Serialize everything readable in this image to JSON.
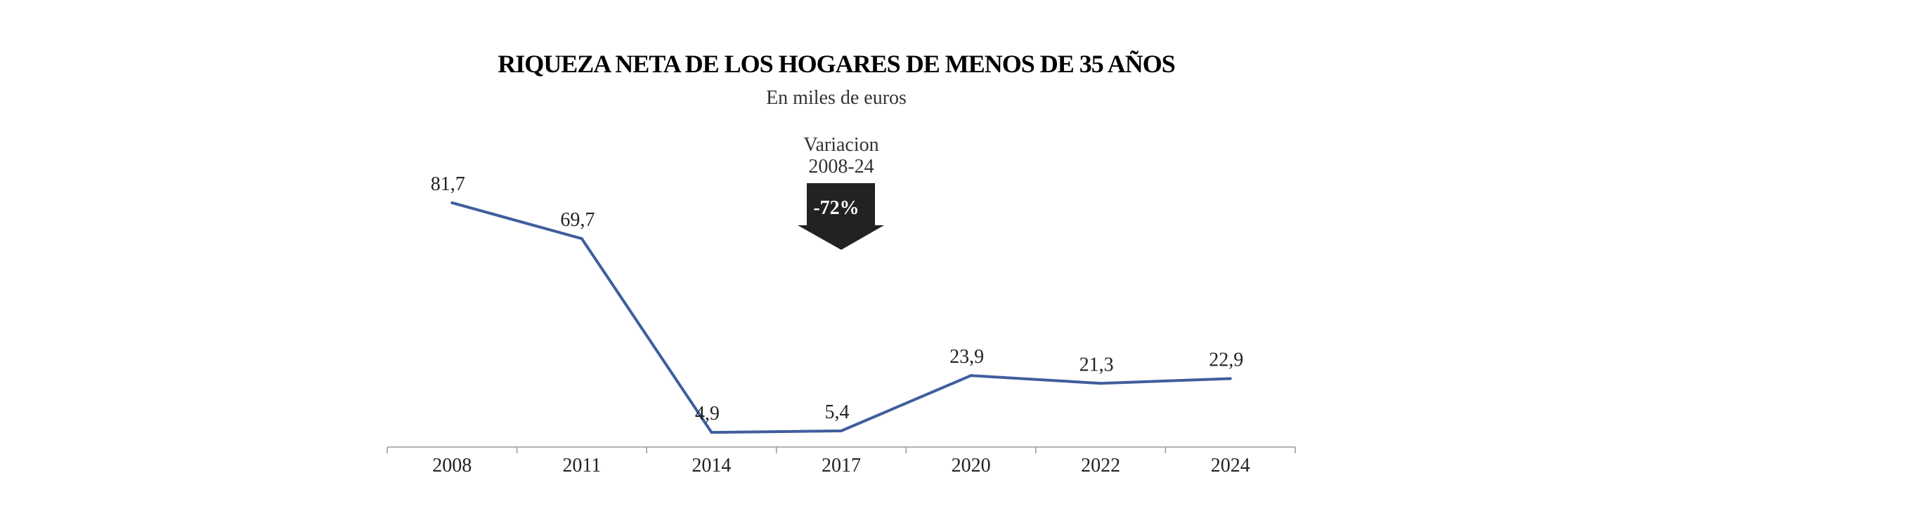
{
  "chart_data": {
    "type": "line",
    "title": "RIQUEZA NETA DE LOS HOGARES DE MENOS DE 35 AÑOS",
    "subtitle": "En miles de euros",
    "categories": [
      "2008",
      "2011",
      "2014",
      "2017",
      "2020",
      "2022",
      "2024"
    ],
    "values": [
      81.7,
      69.7,
      4.9,
      5.4,
      23.9,
      21.3,
      22.9
    ],
    "data_labels": [
      "81,7",
      "69,7",
      "4,9",
      "5,4",
      "23,9",
      "21,3",
      "22,9"
    ],
    "xlabel": "",
    "ylabel": "",
    "ylim": [
      0,
      82
    ],
    "grid": false,
    "line_color": "#3f5e9d",
    "annotation": {
      "label_line1": "Variacion",
      "label_line2": "2008-24",
      "value": "-72%",
      "icon": "arrow-down-icon",
      "arrow_color": "#222222"
    }
  }
}
